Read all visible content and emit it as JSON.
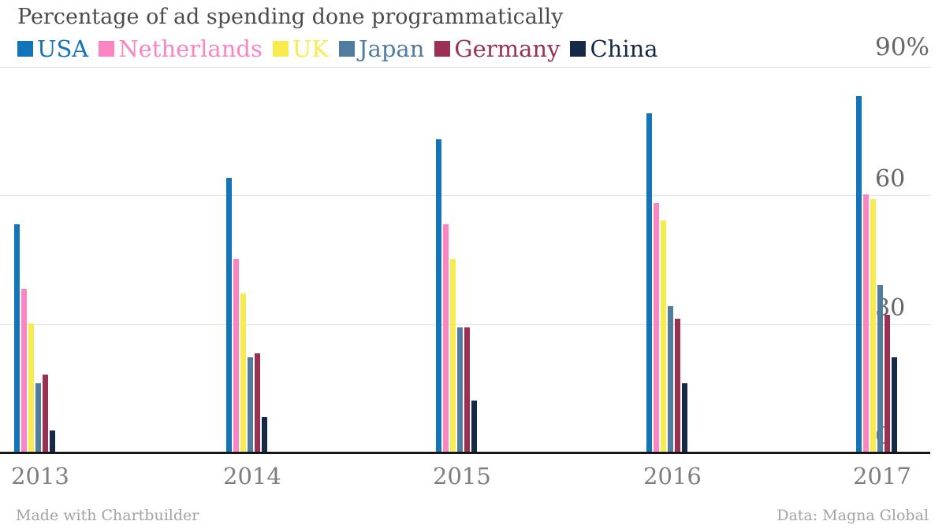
{
  "title": "Percentage of ad spending done programmatically",
  "y_axis_top_label": "90%",
  "footer": {
    "left": "Made with Chartbuilder",
    "right": "Data: Magna Global"
  },
  "chart_data": {
    "type": "bar",
    "title": "Percentage of ad spending done programmatically",
    "xlabel": "",
    "ylabel": "",
    "categories": [
      "2013",
      "2014",
      "2015",
      "2016",
      "2017"
    ],
    "series": [
      {
        "name": "USA",
        "color": "#1375b9",
        "values": [
          53,
          64,
          73,
          79,
          83
        ]
      },
      {
        "name": "Netherlands",
        "color": "#fa85c2",
        "values": [
          38,
          45,
          53,
          58,
          60
        ]
      },
      {
        "name": "UK",
        "color": "#f8eb4e",
        "values": [
          30,
          37,
          45,
          54,
          59
        ]
      },
      {
        "name": "Japan",
        "color": "#507d9f",
        "values": [
          16,
          22,
          29,
          34,
          39
        ]
      },
      {
        "name": "Germany",
        "color": "#9b3152",
        "values": [
          18,
          23,
          29,
          31,
          32
        ]
      },
      {
        "name": "China",
        "color": "#142a46",
        "values": [
          5,
          8,
          12,
          16,
          22
        ]
      }
    ],
    "ylim": [
      0,
      90
    ],
    "yticks": [
      0,
      30,
      60,
      90
    ],
    "grid": true,
    "legend_position": "top",
    "source": "Data: Magna Global"
  }
}
